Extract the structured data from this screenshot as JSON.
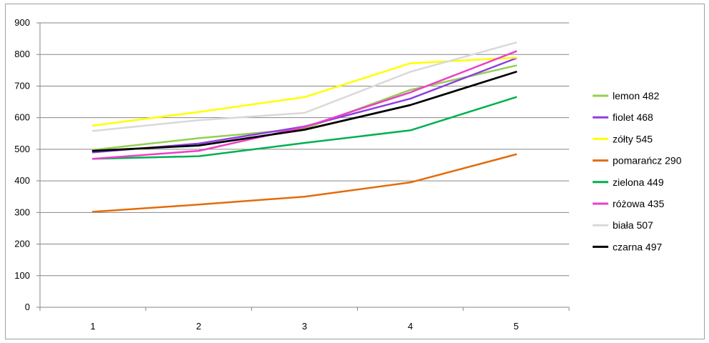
{
  "chart_data": {
    "type": "line",
    "title": "",
    "xlabel": "",
    "ylabel": "",
    "x": [
      1,
      2,
      3,
      4,
      5
    ],
    "ylim": [
      0,
      900
    ],
    "yticks": [
      0,
      100,
      200,
      300,
      400,
      500,
      600,
      700,
      800,
      900
    ],
    "grid": true,
    "legend_position": "right",
    "series": [
      {
        "name": "lemon 482",
        "color": "#92d050",
        "values": [
          498,
          535,
          565,
          688,
          765
        ]
      },
      {
        "name": "fiolet 468",
        "color": "#8e3fe0",
        "values": [
          490,
          518,
          572,
          660,
          788
        ]
      },
      {
        "name": "zółty 545",
        "color": "#ffff00",
        "values": [
          575,
          618,
          665,
          772,
          790
        ]
      },
      {
        "name": "pomarańcz 290",
        "color": "#e46c0a",
        "values": [
          302,
          325,
          350,
          395,
          484
        ]
      },
      {
        "name": "zielona 449",
        "color": "#00b050",
        "values": [
          470,
          478,
          520,
          560,
          665
        ]
      },
      {
        "name": "różowa 435",
        "color": "#ee3ec9",
        "values": [
          470,
          495,
          570,
          680,
          810
        ]
      },
      {
        "name": "biała 507",
        "color": "#d9d9d9",
        "values": [
          558,
          592,
          615,
          745,
          838
        ]
      },
      {
        "name": "czarna 497",
        "color": "#000000",
        "values": [
          495,
          512,
          562,
          640,
          745
        ]
      }
    ]
  }
}
